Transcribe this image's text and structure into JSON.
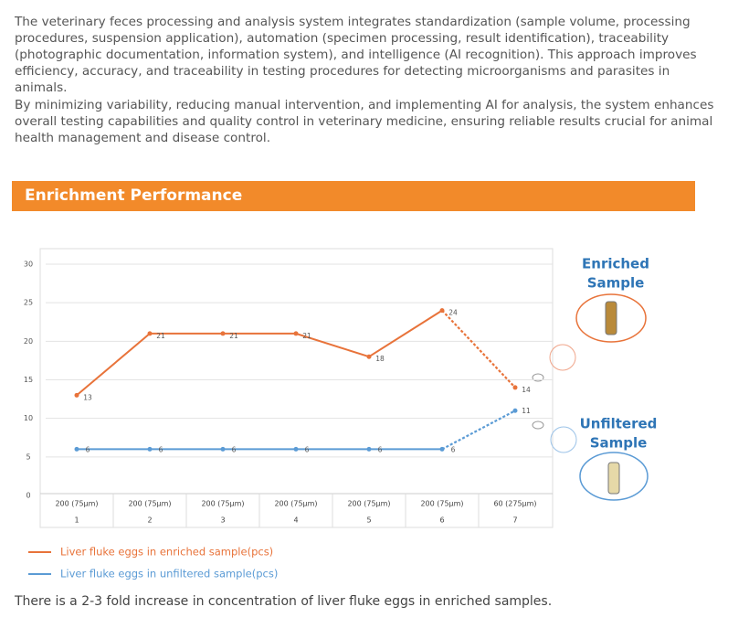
{
  "paragraphs": [
    "The veterinary feces processing and analysis system integrates standardization (sample volume, processing procedures, suspension application), automation (specimen processing, result identification), traceability (photographic documentation, information system), and intelligence (AI recognition). This approach improves efficiency,  accuracy, and traceability in testing procedures for detecting microorganisms and parasites in animals.",
    "By minimizing variability, reducing manual intervention, and implementing AI for analysis, the system enhances overall testing capabilities and quality control in veterinary medicine, ensuring reliable results crucial for animal health management and disease control."
  ],
  "section_title": "Enrichment Performance",
  "chart_data": {
    "type": "line",
    "categories": [
      "200 (75μm)",
      "200 (75μm)",
      "200 (75μm)",
      "200 (75μm)",
      "200 (75μm)",
      "200 (75μm)",
      "60 (275μm)"
    ],
    "category_numbers": [
      "1",
      "2",
      "3",
      "4",
      "5",
      "6",
      "7"
    ],
    "series": [
      {
        "name": "Liver fluke eggs in enriched sample(pcs)",
        "color": "#e8733a",
        "values": [
          13,
          21,
          21,
          21,
          18,
          24,
          14
        ],
        "dash_last_segment": true
      },
      {
        "name": "Liver fluke eggs in unfiltered sample(pcs)",
        "color": "#5b9bd5",
        "values": [
          6,
          6,
          6,
          6,
          6,
          6,
          11
        ],
        "dash_last_segment": true
      }
    ],
    "ylim": [
      0,
      30
    ],
    "yticks": [
      0,
      5,
      10,
      15,
      20,
      25,
      30
    ],
    "grid": true
  },
  "side_labels": {
    "enriched": [
      "Enriched",
      "Sample"
    ],
    "unfiltered": [
      "Unfiltered",
      "Sample"
    ]
  },
  "footer": "There is a 2-3 fold increase in concentration of liver fluke eggs in enriched samples."
}
